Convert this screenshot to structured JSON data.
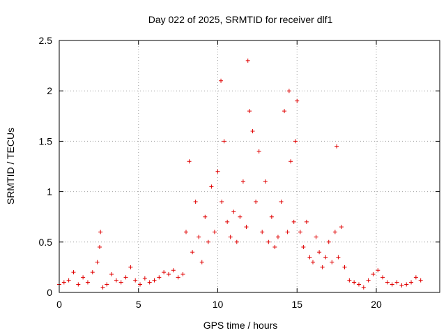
{
  "chart_data": {
    "type": "scatter",
    "title": "Day 022 of 2025, SRMTID for receiver dlf1",
    "xlabel": "GPS time / hours",
    "ylabel": "SRMTID / TECUs",
    "xlim": [
      0,
      24
    ],
    "ylim": [
      0,
      2.5
    ],
    "xticks": [
      0,
      5,
      10,
      15,
      20
    ],
    "xtick_labels": [
      "0",
      "5",
      "10",
      "15",
      "20"
    ],
    "yticks": [
      0,
      0.5,
      1,
      1.5,
      2,
      2.5
    ],
    "ytick_labels": [
      "0",
      "0.5",
      "1",
      "1.5",
      "2",
      "2.5"
    ],
    "grid": true,
    "marker": "+",
    "color": "#e00000",
    "series": [
      {
        "name": "SRMTID",
        "x": [
          0.0,
          0.3,
          0.6,
          0.9,
          1.2,
          1.5,
          1.8,
          2.1,
          2.4,
          2.55,
          2.6,
          2.75,
          3.0,
          3.3,
          3.6,
          3.9,
          4.2,
          4.5,
          4.8,
          5.1,
          5.4,
          5.7,
          6.0,
          6.3,
          6.6,
          6.9,
          7.2,
          7.5,
          7.8,
          8.0,
          8.2,
          8.4,
          8.6,
          8.8,
          9.0,
          9.2,
          9.4,
          9.6,
          9.8,
          10.0,
          10.2,
          10.25,
          10.4,
          10.6,
          10.8,
          11.0,
          11.2,
          11.4,
          11.6,
          11.8,
          11.9,
          12.0,
          12.2,
          12.4,
          12.6,
          12.8,
          13.0,
          13.2,
          13.4,
          13.6,
          13.8,
          14.0,
          14.2,
          14.4,
          14.5,
          14.6,
          14.8,
          14.9,
          15.0,
          15.2,
          15.4,
          15.6,
          15.8,
          16.0,
          16.2,
          16.4,
          16.6,
          16.8,
          17.0,
          17.2,
          17.4,
          17.5,
          17.6,
          17.8,
          18.0,
          18.3,
          18.6,
          18.9,
          19.2,
          19.5,
          19.8,
          20.1,
          20.4,
          20.7,
          21.0,
          21.3,
          21.6,
          21.9,
          22.2,
          22.5,
          22.8
        ],
        "y": [
          0.08,
          0.1,
          0.12,
          0.2,
          0.08,
          0.15,
          0.1,
          0.2,
          0.3,
          0.45,
          0.6,
          0.05,
          0.08,
          0.18,
          0.12,
          0.1,
          0.15,
          0.25,
          0.12,
          0.08,
          0.14,
          0.1,
          0.12,
          0.15,
          0.2,
          0.18,
          0.22,
          0.15,
          0.18,
          0.6,
          1.3,
          0.4,
          0.9,
          0.55,
          0.3,
          0.75,
          0.5,
          1.05,
          0.6,
          1.2,
          2.1,
          0.9,
          1.5,
          0.7,
          0.55,
          0.8,
          0.5,
          0.75,
          1.1,
          0.65,
          2.3,
          1.8,
          1.6,
          0.9,
          1.4,
          0.6,
          1.1,
          0.5,
          0.75,
          0.45,
          0.55,
          0.9,
          1.8,
          0.6,
          2.0,
          1.3,
          0.7,
          1.5,
          1.9,
          0.6,
          0.45,
          0.7,
          0.35,
          0.3,
          0.55,
          0.4,
          0.25,
          0.35,
          0.5,
          0.3,
          0.6,
          1.45,
          0.35,
          0.65,
          0.25,
          0.12,
          0.1,
          0.08,
          0.05,
          0.12,
          0.18,
          0.22,
          0.15,
          0.1,
          0.08,
          0.1,
          0.07,
          0.08,
          0.1,
          0.15,
          0.12
        ]
      }
    ]
  }
}
